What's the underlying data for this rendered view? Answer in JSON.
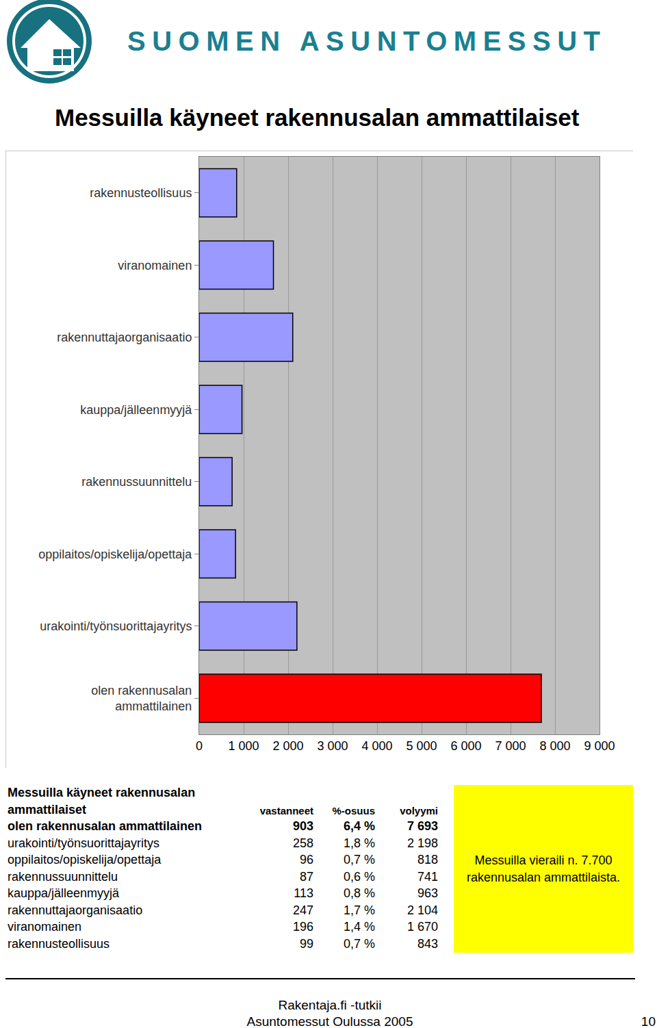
{
  "header": {
    "brand": "SUOMEN ASUNTOMESSUT"
  },
  "chart_data": {
    "type": "bar",
    "orientation": "horizontal",
    "title": "Messuilla käyneet rakennusalan ammattilaiset",
    "categories": [
      "olen rakennusalan ammattilainen",
      "urakointi/työnsuorittajayritys",
      "oppilaitos/opiskelija/opettaja",
      "rakennussuunnittelu",
      "kauppa/jälleenmyyjä",
      "rakennuttajaorganisaatio",
      "viranomainen",
      "rakennusteollisuus"
    ],
    "values": [
      7693,
      2198,
      818,
      741,
      963,
      2104,
      1670,
      843
    ],
    "colors": [
      "#ff0000",
      "#9999ff",
      "#9999ff",
      "#9999ff",
      "#9999ff",
      "#9999ff",
      "#9999ff",
      "#9999ff"
    ],
    "xlim": [
      0,
      9000
    ],
    "xticks": [
      0,
      {
        "value": 1000,
        "label": "1 000"
      },
      {
        "value": 2000,
        "label": "2 000"
      },
      {
        "value": 3000,
        "label": "3 000"
      },
      {
        "value": 4000,
        "label": "4 000"
      },
      {
        "value": 5000,
        "label": "5 000"
      },
      {
        "value": 6000,
        "label": "6 000"
      },
      {
        "value": 7000,
        "label": "7 000"
      },
      {
        "value": 8000,
        "label": "8 000"
      },
      {
        "value": 9000,
        "label": "9 000"
      }
    ],
    "grid": true,
    "data_labels": false
  },
  "table": {
    "title": "Messuilla käyneet rakennusalan ammattilaiset",
    "columns": [
      "vastanneet",
      "%-osuus",
      "volyymi"
    ],
    "rows": [
      [
        "olen rakennusalan ammattilainen",
        "903",
        "6,4 %",
        "7 693"
      ],
      [
        "urakointi/työnsuorittajayritys",
        "258",
        "1,8 %",
        "2 198"
      ],
      [
        "oppilaitos/opiskelija/opettaja",
        "96",
        "0,7 %",
        "818"
      ],
      [
        "rakennussuunnittelu",
        "87",
        "0,6 %",
        "741"
      ],
      [
        "kauppa/jälleenmyyjä",
        "113",
        "0,8 %",
        "963"
      ],
      [
        "rakennuttajaorganisaatio",
        "247",
        "1,7 %",
        "2 104"
      ],
      [
        "viranomainen",
        "196",
        "1,4 %",
        "1 670"
      ],
      [
        "rakennusteollisuus",
        "99",
        "0,7 %",
        "843"
      ]
    ]
  },
  "note": "Messuilla vieraili n. 7.700 rakennusalan ammattilaista.",
  "footer": {
    "lines": [
      "Rakentaja.fi -tutkii",
      "Asuntomessut Oulussa 2005"
    ],
    "page": "10"
  }
}
